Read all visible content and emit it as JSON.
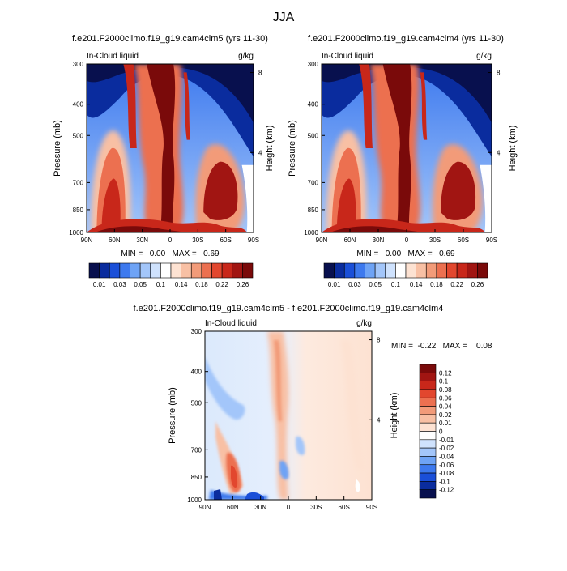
{
  "page": {
    "title": "JJA"
  },
  "chart_data": [
    {
      "type": "contour",
      "title": "f.e201.F2000climo.f19_g19.cam4clm5 (yrs 11-30)",
      "left_subtitle": "In-Cloud liquid",
      "right_subtitle": "g/kg",
      "ylabel": "Pressure (mb)",
      "ylabel_right": "Height (km)",
      "x_ticks": [
        "90N",
        "60N",
        "30N",
        "0",
        "30S",
        "60S",
        "90S"
      ],
      "y_ticks": [
        "300",
        "400",
        "500",
        "700",
        "850",
        "1000"
      ],
      "y_ticks_right": [
        "8",
        "4"
      ],
      "ylim": [
        1000,
        300
      ],
      "stats": "MIN =   0.00   MAX =   0.69",
      "colorbar": {
        "orientation": "horizontal",
        "levels": [
          "0.01",
          "0.03",
          "0.05",
          "0.1",
          "0.14",
          "0.18",
          "0.22",
          "0.26"
        ],
        "colors": [
          "#08104e",
          "#0a2c9e",
          "#1a4fd8",
          "#3d79ee",
          "#6ea3f5",
          "#a3c6fa",
          "#cfe2fd",
          "#ffffff",
          "#fde2d2",
          "#f8c0a4",
          "#f29b79",
          "#ec7050",
          "#e2472e",
          "#c8271a",
          "#a11512",
          "#7a0a0a"
        ]
      }
    },
    {
      "type": "contour",
      "title": "f.e201.F2000climo.f19_g19.cam4clm4 (yrs 11-30)",
      "left_subtitle": "In-Cloud liquid",
      "right_subtitle": "g/kg",
      "ylabel": "Pressure (mb)",
      "ylabel_right": "Height (km)",
      "x_ticks": [
        "90N",
        "60N",
        "30N",
        "0",
        "30S",
        "60S",
        "90S"
      ],
      "y_ticks": [
        "300",
        "400",
        "500",
        "700",
        "850",
        "1000"
      ],
      "y_ticks_right": [
        "8",
        "4"
      ],
      "ylim": [
        1000,
        300
      ],
      "stats": "MIN =   0.00   MAX =   0.69",
      "colorbar": {
        "orientation": "horizontal",
        "levels": [
          "0.01",
          "0.03",
          "0.05",
          "0.1",
          "0.14",
          "0.18",
          "0.22",
          "0.26"
        ],
        "colors": [
          "#08104e",
          "#0a2c9e",
          "#1a4fd8",
          "#3d79ee",
          "#6ea3f5",
          "#a3c6fa",
          "#cfe2fd",
          "#ffffff",
          "#fde2d2",
          "#f8c0a4",
          "#f29b79",
          "#ec7050",
          "#e2472e",
          "#c8271a",
          "#a11512",
          "#7a0a0a"
        ]
      }
    },
    {
      "type": "contour",
      "title": "f.e201.F2000climo.f19_g19.cam4clm5 - f.e201.F2000climo.f19_g19.cam4clm4",
      "left_subtitle": "In-Cloud liquid",
      "right_subtitle": "g/kg",
      "ylabel": "Pressure (mb)",
      "ylabel_right": "Height (km)",
      "x_ticks": [
        "90N",
        "60N",
        "30N",
        "0",
        "30S",
        "60S",
        "90S"
      ],
      "y_ticks": [
        "300",
        "400",
        "500",
        "700",
        "850",
        "1000"
      ],
      "y_ticks_right": [
        "8",
        "4"
      ],
      "ylim": [
        1000,
        300
      ],
      "stats": "MIN =  -0.22   MAX =    0.08",
      "colorbar": {
        "orientation": "vertical",
        "levels": [
          "0.12",
          "0.1",
          "0.08",
          "0.06",
          "0.04",
          "0.02",
          "0.01",
          "0",
          "-0.01",
          "-0.02",
          "-0.04",
          "-0.06",
          "-0.08",
          "-0.1",
          "-0.12"
        ],
        "colors": [
          "#7a0a0a",
          "#a11512",
          "#c8271a",
          "#e2472e",
          "#ec7050",
          "#f29b79",
          "#f8c0a4",
          "#fde2d2",
          "#ffffff",
          "#cfe2fd",
          "#a3c6fa",
          "#6ea3f5",
          "#3d79ee",
          "#1a4fd8",
          "#0a2c9e",
          "#08104e"
        ]
      }
    }
  ]
}
